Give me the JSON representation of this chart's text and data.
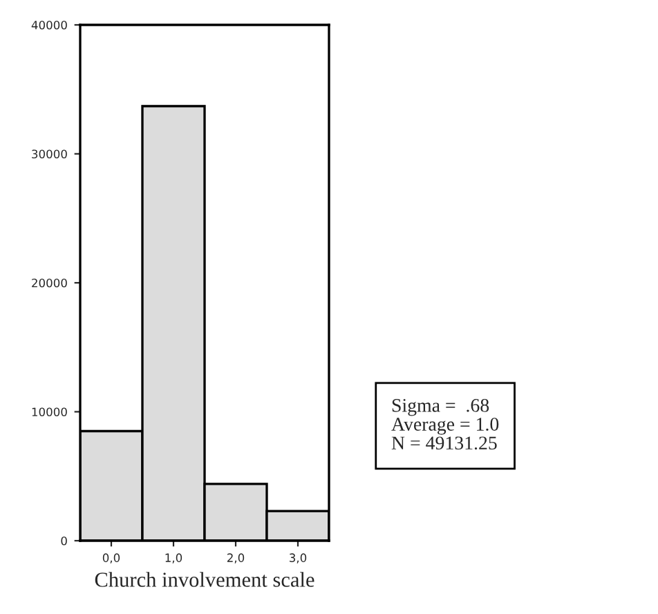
{
  "chart_data": {
    "type": "histogram",
    "xlabel": "Church involvement scale",
    "bins": [
      -0.5,
      0.5,
      1.5,
      2.5,
      3.5
    ],
    "values": [
      8500,
      33700,
      4400,
      2300
    ],
    "color": "#dcdcdc",
    "xlim": [
      -0.5,
      3.5
    ],
    "xticks": [
      {
        "value": 0,
        "label": "0,0"
      },
      {
        "value": 1,
        "label": "1,0"
      },
      {
        "value": 2,
        "label": "2,0"
      },
      {
        "value": 3,
        "label": "3,0"
      }
    ],
    "ylim": [
      0,
      40000
    ],
    "yticks": [
      0,
      10000,
      20000,
      30000,
      40000
    ],
    "grid": false,
    "legend": false,
    "annotations": [
      "Sigma =  .68",
      "Average = 1.0",
      "N = 49131.25"
    ]
  }
}
